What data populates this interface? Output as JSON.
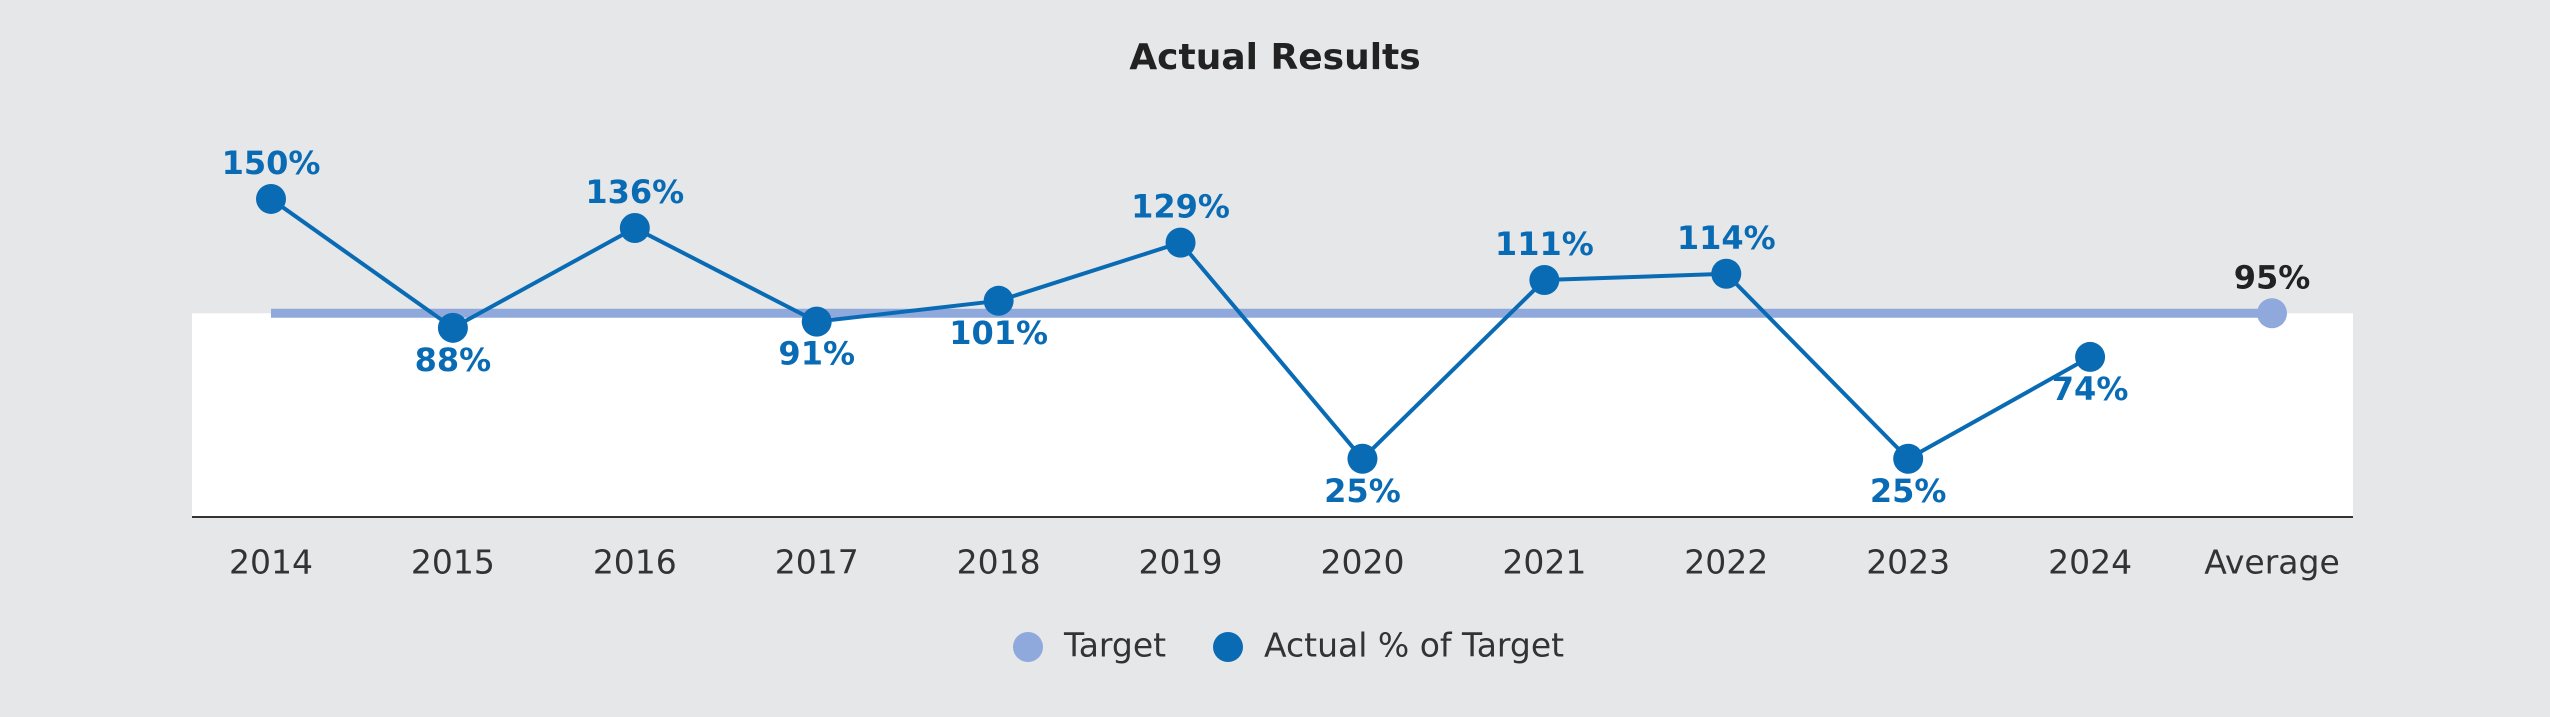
{
  "chart_data": {
    "type": "line",
    "title": "Actual Results",
    "categories": [
      "2014",
      "2015",
      "2016",
      "2017",
      "2018",
      "2019",
      "2020",
      "2021",
      "2022",
      "2023",
      "2024",
      "Average"
    ],
    "series": [
      {
        "name": "Target",
        "color": "#8fa9dc",
        "values": [
          95,
          95,
          95,
          95,
          95,
          95,
          95,
          95,
          95,
          95,
          95,
          95
        ],
        "value_labels": [
          null,
          null,
          null,
          null,
          null,
          null,
          null,
          null,
          null,
          null,
          null,
          "95%"
        ]
      },
      {
        "name": "Actual % of Target",
        "color": "#0a6bb5",
        "values": [
          150,
          88,
          136,
          91,
          101,
          129,
          25,
          111,
          114,
          25,
          74,
          null
        ],
        "value_labels": [
          "150%",
          "88%",
          "136%",
          "91%",
          "101%",
          "129%",
          "25%",
          "111%",
          "114%",
          "25%",
          "74%",
          null
        ]
      }
    ],
    "ylim": [
      -3,
      200
    ],
    "legend": "bottom"
  }
}
